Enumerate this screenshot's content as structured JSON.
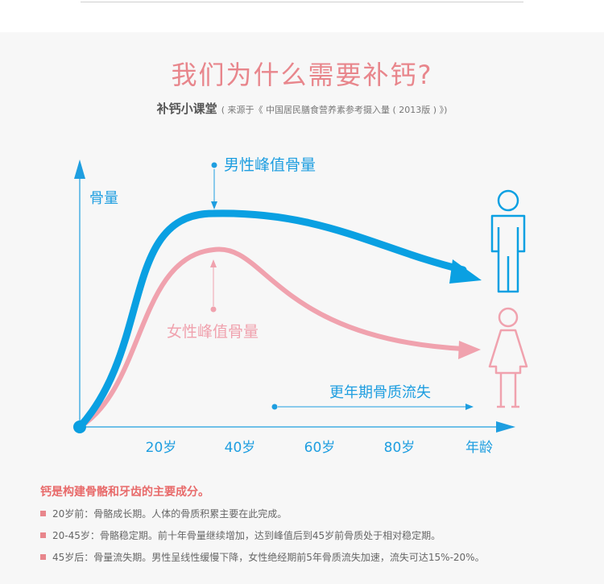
{
  "title": "我们为什么需要补钙?",
  "subtitle": {
    "main": "补钙小课堂",
    "source": "( 来源于《 中国居民膳食营养素参考摄入量 ( 2013版 ) 》)"
  },
  "colors": {
    "male": "#0aa0e2",
    "female": "#f0a2ae",
    "title": "#e8868c",
    "emphasis": "#e86a6a"
  },
  "chart_data": {
    "type": "line",
    "title": "",
    "ylabel": "骨量",
    "xlabel": "年龄",
    "categories": [
      "20岁",
      "40岁",
      "60岁",
      "80岁"
    ],
    "series": [
      {
        "name": "男性峰值骨量",
        "color": "#0aa0e2",
        "icon": "male-figure-icon"
      },
      {
        "name": "女性峰值骨量",
        "color": "#f0a2ae",
        "icon": "female-figure-icon"
      }
    ],
    "annotations": [
      "更年期骨质流失"
    ],
    "grid": false
  },
  "notes": {
    "heading": "钙是构建骨骼和牙齿的主要成分。",
    "items": [
      "20岁前：骨骼成长期。人体的骨质积累主要在此完成。",
      "20-45岁：骨骼稳定期。前十年骨量继续增加，达到峰值后到45岁前骨质处于相对稳定期。",
      "45岁后：骨量流失期。男性呈线性缓慢下降，女性绝经期前5年骨质流失加速，流失可达15%-20%。"
    ]
  }
}
